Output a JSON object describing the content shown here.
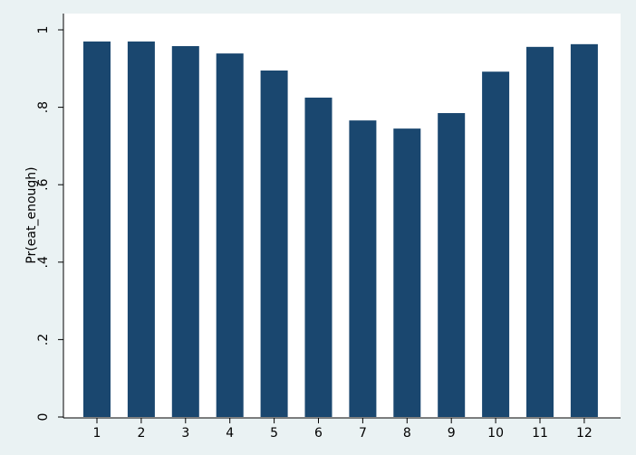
{
  "chart_data": {
    "type": "bar",
    "y_label": "Pr(eat_enough)",
    "categories": [
      "1",
      "2",
      "3",
      "4",
      "5",
      "6",
      "7",
      "8",
      "9",
      "10",
      "11",
      "12"
    ],
    "values": [
      0.97,
      0.97,
      0.958,
      0.939,
      0.895,
      0.825,
      0.766,
      0.745,
      0.785,
      0.892,
      0.956,
      0.963
    ],
    "color": "#1a476f",
    "ylim": [
      0,
      1
    ],
    "yticks": [
      0,
      {
        "value": 0.2,
        "label": ".2"
      },
      {
        "value": 0.4,
        "label": ".4"
      },
      {
        "value": 0.6,
        "label": ".6"
      },
      {
        "value": 0.8,
        "label": ".8"
      },
      1
    ],
    "grid": false
  }
}
